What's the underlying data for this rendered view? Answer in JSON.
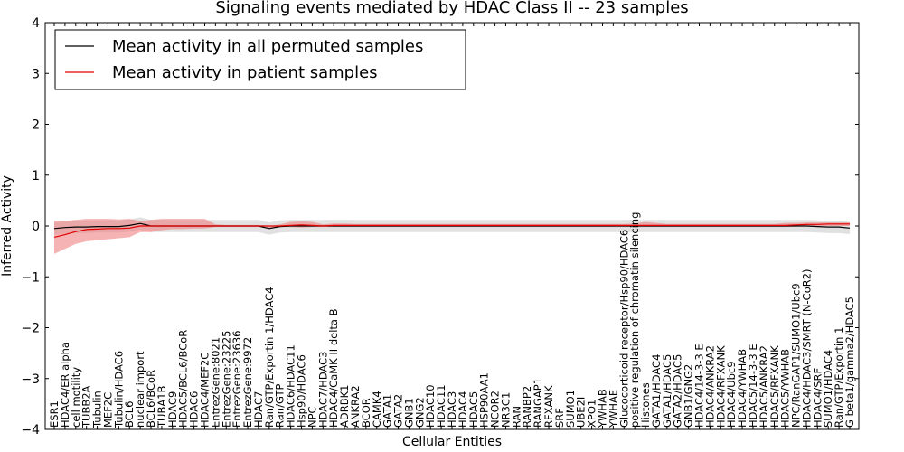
{
  "chart_data": {
    "type": "line",
    "title": "Signaling events mediated by HDAC Class II -- 23 samples",
    "xlabel": "Cellular Entities",
    "ylabel": "Inferred Activity",
    "ylim": [
      -4,
      4
    ],
    "yticks": [
      "4",
      "3",
      "2",
      "1",
      "0",
      "−1",
      "−2",
      "−3",
      "−4"
    ],
    "legend_location": "top-left",
    "colors": {
      "permuted": "#000000",
      "patient": "#e00000",
      "patient_band": "#f08080",
      "permuted_band": "#c8c8c8"
    },
    "categories": [
      "ESR1",
      "HDAC4/ER alpha",
      "cell motility",
      "TUBB2A",
      "Tubulin",
      "MEF2C",
      "Tubulin/HDAC6",
      "BCL6",
      "nuclear import",
      "BCL6/BCoR",
      "TUBA1B",
      "HDAC9",
      "HDAC5/BCL6/BCoR",
      "HDAC6",
      "HDAC4/MEF2C",
      "EntrezGene:8021",
      "EntrezGene:23225",
      "EntrezGene:23636",
      "EntrezGene:9972",
      "HDAC7",
      "Ran/GTP/Exportin 1/HDAC4",
      "Ran/GTP",
      "HDAC6/HDAC11",
      "Hsp90/HDAC6",
      "NPC",
      "HDAC7/HDAC3",
      "HDAC4/CaMK II delta B",
      "ADRBK1",
      "ANKRA2",
      "BCOR",
      "CAMK4",
      "GATA1",
      "GATA2",
      "GNB1",
      "GNG2",
      "HDAC10",
      "HDAC11",
      "HDAC3",
      "HDAC4",
      "HDAC5",
      "HSP90AA1",
      "NCOR2",
      "NR3C1",
      "RAN",
      "RANBP2",
      "RANGAP1",
      "RFXANK",
      "SRF",
      "SUMO1",
      "UBE2I",
      "XPO1",
      "YWHAB",
      "YWHAE",
      "Glucocorticoid receptor/Hsp90/HDAC6",
      "positive regulation of chromatin silencing",
      "Histones",
      "GATA1/HDAC4",
      "GATA1/HDAC5",
      "GATA2/HDAC5",
      "GNB1/GNG2",
      "HDAC4/14-3-3 E",
      "HDAC4/ANKRA2",
      "HDAC4/RFXANK",
      "HDAC4/Ubc9",
      "HDAC4/YWHAB",
      "HDAC5/14-3-3 E",
      "HDAC5/ANKRA2",
      "HDAC5/RFXANK",
      "HDAC5/YWHAB",
      "NPC/RanGAP1/SUMO1/Ubc9",
      "HDAC4/HDAC3/SMRT (N-CoR2)",
      "HDAC4/SRF",
      "SUMO1/HDAC4",
      "Ran/GTP/Exportin 1",
      "G beta1/gamma2/HDAC5"
    ],
    "series": [
      {
        "name": "Mean activity in all permuted samples",
        "values": [
          -0.05,
          -0.03,
          -0.02,
          -0.02,
          -0.01,
          -0.01,
          -0.01,
          0.01,
          0.05,
          0.0,
          0.0,
          0.0,
          0.0,
          0.0,
          0.0,
          0.0,
          0.0,
          0.0,
          0.0,
          0.0,
          -0.05,
          -0.01,
          0.0,
          0.0,
          0.0,
          0.0,
          0.0,
          0.0,
          0.0,
          0.0,
          0.0,
          0.0,
          0.0,
          0.0,
          0.0,
          0.0,
          0.0,
          0.0,
          0.0,
          0.0,
          0.0,
          0.0,
          0.0,
          0.0,
          0.0,
          0.0,
          0.0,
          0.0,
          0.0,
          0.0,
          0.0,
          0.0,
          0.0,
          0.0,
          0.0,
          0.0,
          0.0,
          0.0,
          0.0,
          0.0,
          0.0,
          0.0,
          0.0,
          0.0,
          0.0,
          0.0,
          0.0,
          0.0,
          0.0,
          0.0,
          0.0,
          -0.01,
          -0.02,
          -0.02,
          -0.04
        ],
        "band": 0.12
      },
      {
        "name": "Mean activity in patient samples",
        "values": [
          -0.22,
          -0.17,
          -0.11,
          -0.07,
          -0.06,
          -0.05,
          -0.05,
          -0.04,
          0.0,
          0.0,
          0.0,
          0.0,
          0.0,
          0.0,
          0.0,
          0.0,
          0.0,
          0.0,
          0.0,
          0.0,
          0.0,
          0.0,
          0.01,
          0.02,
          0.01,
          0.0,
          0.01,
          0.01,
          0.01,
          0.01,
          0.01,
          0.01,
          0.01,
          0.01,
          0.01,
          0.01,
          0.01,
          0.01,
          0.01,
          0.01,
          0.01,
          0.01,
          0.01,
          0.01,
          0.01,
          0.01,
          0.01,
          0.01,
          0.01,
          0.01,
          0.01,
          0.01,
          0.01,
          0.01,
          0.01,
          0.01,
          0.01,
          0.01,
          0.01,
          0.01,
          0.01,
          0.01,
          0.01,
          0.01,
          0.01,
          0.01,
          0.01,
          0.01,
          0.01,
          0.02,
          0.03,
          0.03,
          0.04,
          0.04,
          0.04
        ],
        "band_upper": [
          0.1,
          0.1,
          0.12,
          0.14,
          0.14,
          0.14,
          0.13,
          0.14,
          0.1,
          0.12,
          0.14,
          0.14,
          0.14,
          0.14,
          0.14,
          0.03,
          0.02,
          0.02,
          0.02,
          0.02,
          0.0,
          0.03,
          0.08,
          0.09,
          0.08,
          0.03,
          0.05,
          0.05,
          0.04,
          0.04,
          0.04,
          0.04,
          0.04,
          0.04,
          0.04,
          0.04,
          0.04,
          0.04,
          0.04,
          0.04,
          0.04,
          0.04,
          0.04,
          0.04,
          0.04,
          0.04,
          0.04,
          0.04,
          0.04,
          0.04,
          0.04,
          0.04,
          0.04,
          0.04,
          0.05,
          0.08,
          0.06,
          0.04,
          0.04,
          0.04,
          0.04,
          0.04,
          0.04,
          0.04,
          0.04,
          0.04,
          0.04,
          0.04,
          0.06,
          0.06,
          0.07,
          0.07,
          0.07,
          0.07,
          0.07
        ],
        "band_lower": [
          -0.55,
          -0.45,
          -0.35,
          -0.3,
          -0.28,
          -0.26,
          -0.24,
          -0.22,
          -0.12,
          -0.12,
          -0.08,
          -0.06,
          -0.06,
          -0.05,
          -0.05,
          -0.02,
          -0.02,
          -0.02,
          -0.02,
          -0.02,
          -0.05,
          -0.02,
          -0.02,
          -0.03,
          -0.02,
          -0.02,
          -0.02,
          -0.02,
          -0.02,
          -0.02,
          -0.02,
          -0.02,
          -0.02,
          -0.02,
          -0.02,
          -0.02,
          -0.02,
          -0.02,
          -0.02,
          -0.02,
          -0.02,
          -0.02,
          -0.02,
          -0.02,
          -0.02,
          -0.02,
          -0.02,
          -0.02,
          -0.02,
          -0.02,
          -0.02,
          -0.02,
          -0.02,
          -0.02,
          -0.02,
          -0.02,
          -0.02,
          -0.02,
          -0.02,
          -0.02,
          -0.02,
          -0.02,
          -0.02,
          -0.02,
          -0.02,
          -0.02,
          -0.02,
          -0.02,
          -0.02,
          -0.01,
          0.0,
          0.0,
          0.0,
          0.0,
          0.0
        ]
      }
    ]
  }
}
